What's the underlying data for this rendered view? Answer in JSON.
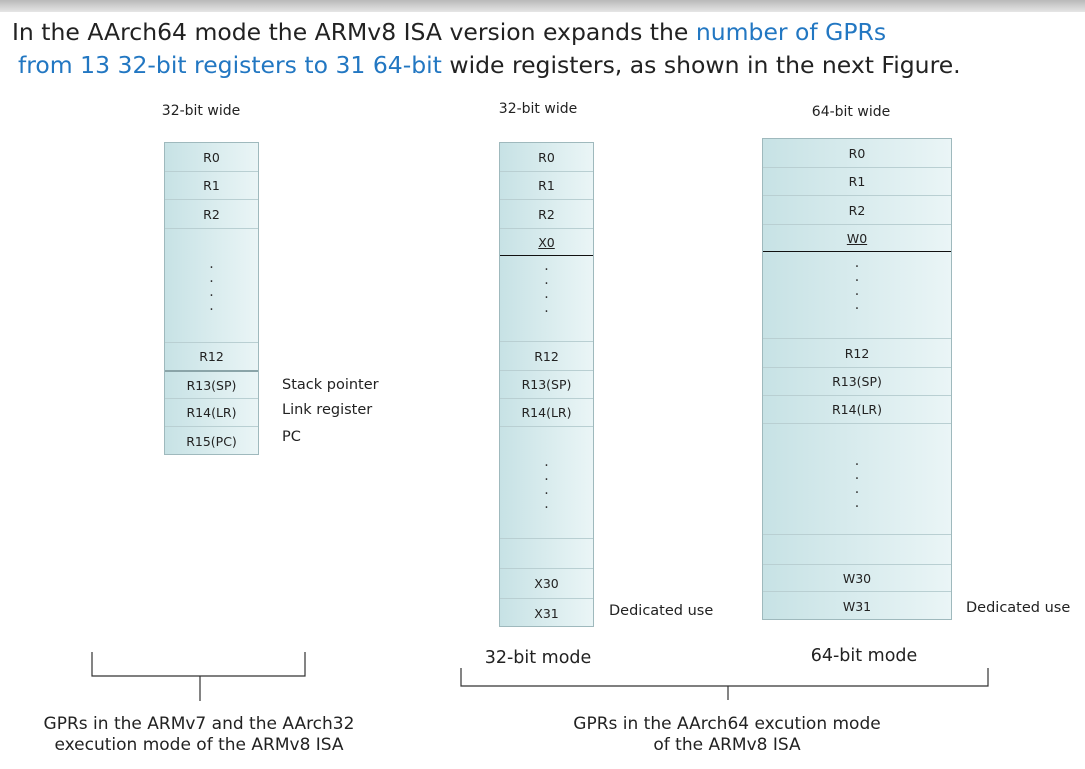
{
  "header": {
    "fragment": "",
    "intro_line1_a": "In the AArch64 mode the ARMv8 ISA version expands the ",
    "intro_line1_hl": "number of GPRs",
    "intro_line2_hl": "from 13 32-bit registers to 31 64-bit",
    "intro_line2_b": " wide registers, as shown in the next Figure.",
    "highlight_color": "#2277c2"
  },
  "left_panel": {
    "width_label": "32-bit wide",
    "registers_top": [
      "R0",
      "R1",
      "R2"
    ],
    "registers_bottom": [
      "R12",
      "R13(SP)",
      "R14(LR)",
      "R15(PC)"
    ],
    "side_labels": [
      "Stack pointer",
      "Link register",
      "PC"
    ],
    "caption_line1": "GPRs in the ARMv7 and the  AArch32",
    "caption_line2": "execution mode of the ARMv8 ISA"
  },
  "mid_panel": {
    "width_label": "32-bit wide",
    "registers_top": [
      "R0",
      "R1",
      "R2"
    ],
    "split_label": "X0",
    "registers_mid": [
      "R12",
      "R13(SP)",
      "R14(LR)"
    ],
    "registers_bottom": [
      "X30",
      "X31"
    ],
    "side_label": "Dedicated use",
    "mode_label": "32-bit mode"
  },
  "right_panel": {
    "width_label": "64-bit wide",
    "registers_top": [
      "R0",
      "R1",
      "R2"
    ],
    "split_label": "W0",
    "registers_mid": [
      "R12",
      "R13(SP)",
      "R14(LR)"
    ],
    "registers_bottom": [
      "W30",
      "W31"
    ],
    "side_label": "Dedicated use",
    "mode_label": "64-bit mode"
  },
  "right_caption": {
    "line1": "GPRs in the AArch64 excution mode",
    "line2": "of the ARMv8 ISA"
  },
  "colors": {
    "register_fill_left": "#c7e2e5",
    "register_fill_right": "#eaf5f6",
    "register_border": "#9fb9bd"
  }
}
